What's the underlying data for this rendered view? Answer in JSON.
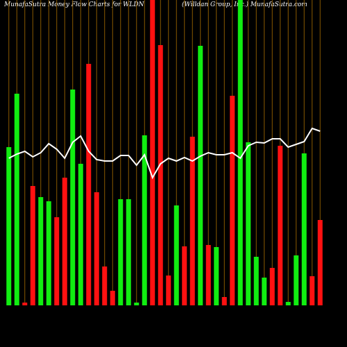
{
  "chart_data": {
    "type": "bar",
    "title": "MunafaSutra  Money Flow  Charts for WLDN",
    "subtitle": "(Willdan  Group,  Inc.) MunafaSutra.com",
    "categories": [
      null,
      null,
      null,
      null,
      null,
      null,
      null,
      null,
      null,
      null,
      null,
      null,
      null,
      null,
      null,
      null,
      null,
      null,
      null,
      null,
      null,
      null,
      null,
      null,
      null,
      null,
      null,
      null,
      null,
      null,
      null,
      null,
      null,
      null,
      null,
      null,
      null,
      null,
      null,
      null
    ],
    "ylim": [
      0,
      440
    ],
    "grid": true,
    "grid_color": "#8a5a00",
    "series": [
      {
        "color": "#11ee11",
        "values": [
          228,
          305,
          0,
          0,
          156,
          150,
          0,
          0,
          311,
          204,
          0,
          0,
          0,
          0,
          153,
          153,
          4,
          245,
          0,
          0,
          0,
          144,
          0,
          0,
          374,
          0,
          84,
          0,
          0,
          440,
          235,
          70,
          40,
          0,
          0,
          5,
          72,
          219,
          0,
          0
        ]
      },
      {
        "color": "#ff1111",
        "values": [
          0,
          0,
          4,
          172,
          0,
          0,
          127,
          184,
          0,
          0,
          348,
          163,
          56,
          21,
          0,
          0,
          0,
          0,
          440,
          375,
          43,
          0,
          85,
          243,
          0,
          87,
          0,
          12,
          302,
          0,
          0,
          0,
          0,
          54,
          230,
          0,
          0,
          0,
          42,
          123
        ]
      },
      {
        "type": "line",
        "color": "#ffffff",
        "values": [
          212,
          218,
          222,
          214,
          220,
          233,
          225,
          212,
          235,
          244,
          222,
          210,
          208,
          208,
          216,
          216,
          202,
          217,
          184,
          204,
          212,
          208,
          213,
          208,
          215,
          220,
          217,
          217,
          220,
          212,
          230,
          235,
          234,
          240,
          240,
          228,
          232,
          236,
          255,
          251
        ]
      }
    ]
  }
}
